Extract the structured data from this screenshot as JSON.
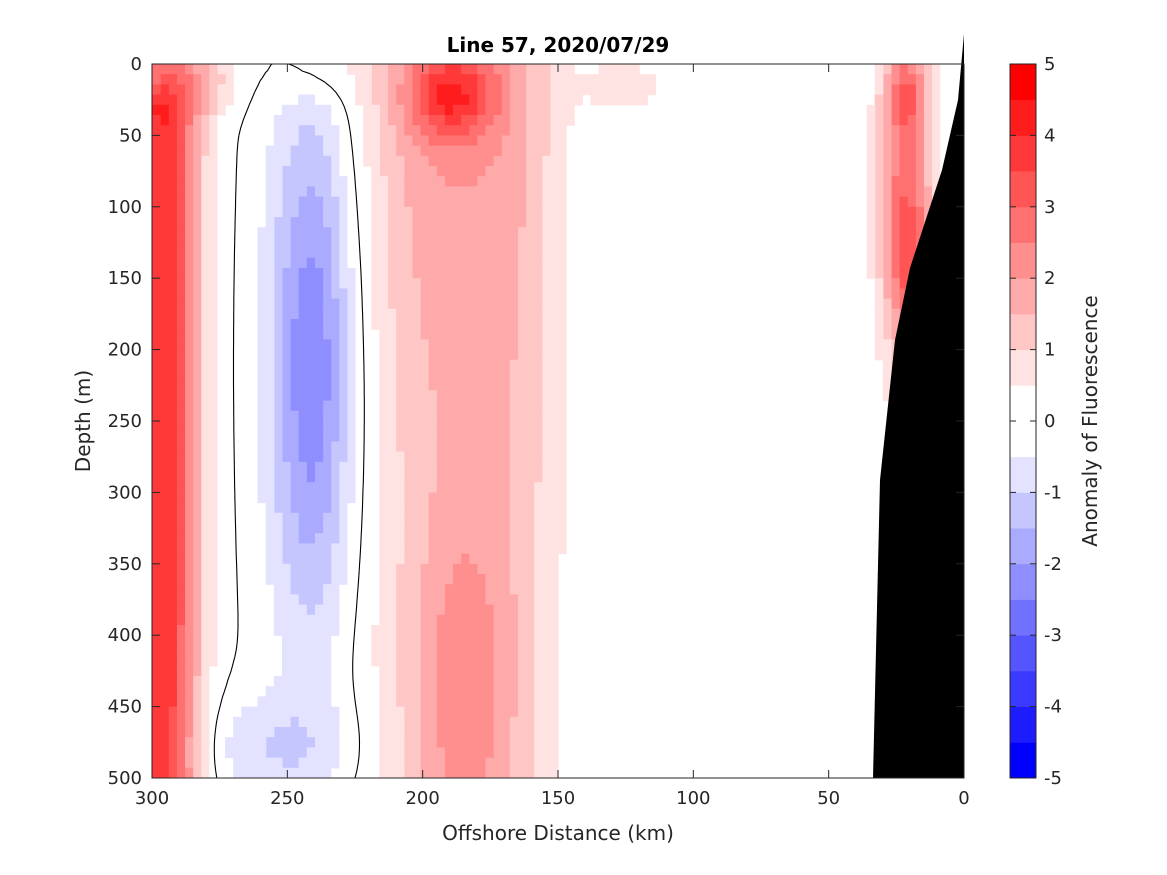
{
  "chart_data": {
    "type": "contour",
    "title": "Line 57, 2020/07/29",
    "xlabel": "Offshore Distance (km)",
    "ylabel": "Depth (m)",
    "colorbar_label": "Anomaly of Fluorescence",
    "x_axis": {
      "reversed": true,
      "xlim": [
        0,
        300
      ],
      "ticks": [
        300,
        250,
        200,
        150,
        100,
        50,
        0
      ]
    },
    "y_axis": {
      "reversed": true,
      "ylim": [
        0,
        500
      ],
      "ticks": [
        0,
        50,
        100,
        150,
        200,
        250,
        300,
        350,
        400,
        450,
        500
      ]
    },
    "colorbar": {
      "clim": [
        -5,
        5
      ],
      "step": 0.5,
      "tick_labels": [
        "5",
        "4",
        "3",
        "2",
        "1",
        "0",
        "-1",
        "-2",
        "-3",
        "-4",
        "-5"
      ],
      "colors_low_to_high": [
        "#0000ff",
        "#1c1cff",
        "#3939ff",
        "#5555ff",
        "#7171ff",
        "#8e8eff",
        "#aaaaff",
        "#c6c6ff",
        "#e3e3ff",
        "#ffffff",
        "#ffffff",
        "#ffe3e3",
        "#ffc6c6",
        "#ffaaaa",
        "#ff8e8e",
        "#ff7171",
        "#ff5555",
        "#ff3939",
        "#ff1c1c",
        "#ff0000"
      ]
    },
    "zero_contour_color": "#000000",
    "bathymetry_color": "#000000",
    "features": [
      {
        "name": "nearshore-band",
        "x_range": [
          262,
          300
        ],
        "depth_range": [
          0,
          500
        ],
        "peak_anomaly": 4
      },
      {
        "name": "negative-core",
        "x_range": [
          225,
          272
        ],
        "depth_range": [
          30,
          500
        ],
        "min_anomaly": -2.5
      },
      {
        "name": "mid-positive-band",
        "x_range": [
          150,
          225
        ],
        "depth_range": [
          0,
          500
        ],
        "peak_anomaly": 4
      },
      {
        "name": "shelf-positive-band",
        "x_range": [
          8,
          40
        ],
        "depth_range": [
          0,
          270
        ],
        "peak_anomaly": 4
      }
    ]
  }
}
